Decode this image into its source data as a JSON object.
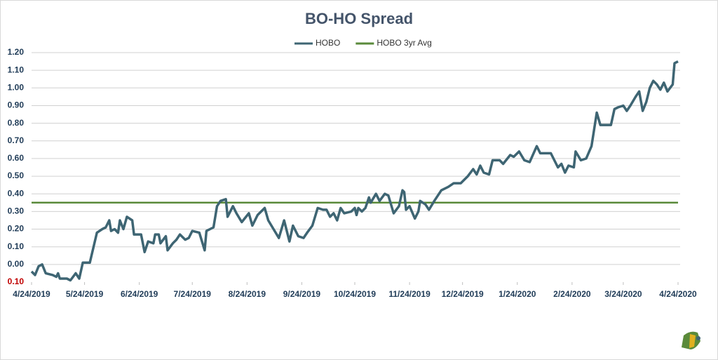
{
  "chart_data": {
    "type": "line",
    "title": "BO-HO Spread",
    "legend": "top",
    "grid": true,
    "negative_tick_color": "#c00000",
    "xlim": [
      "2019-04-24",
      "2020-04-24"
    ],
    "xticks": [
      {
        "value": "2019-04-24",
        "label": "4/24/2019"
      },
      {
        "value": "2019-05-24",
        "label": "5/24/2019"
      },
      {
        "value": "2019-06-24",
        "label": "6/24/2019"
      },
      {
        "value": "2019-07-24",
        "label": "7/24/2019"
      },
      {
        "value": "2019-08-24",
        "label": "8/24/2019"
      },
      {
        "value": "2019-09-24",
        "label": "9/24/2019"
      },
      {
        "value": "2019-10-24",
        "label": "10/24/2019"
      },
      {
        "value": "2019-11-24",
        "label": "11/24/2019"
      },
      {
        "value": "2019-12-24",
        "label": "12/24/2019"
      },
      {
        "value": "2020-01-24",
        "label": "1/24/2020"
      },
      {
        "value": "2020-02-24",
        "label": "2/24/2020"
      },
      {
        "value": "2020-03-24",
        "label": "3/24/2020"
      },
      {
        "value": "2020-04-24",
        "label": "4/24/2020"
      }
    ],
    "ylim": [
      -0.1,
      1.2
    ],
    "yticks": [
      {
        "value": -0.1,
        "label": "0.10"
      },
      {
        "value": 0,
        "label": "0.00"
      },
      {
        "value": 0.1,
        "label": "0.10"
      },
      {
        "value": 0.2,
        "label": "0.20"
      },
      {
        "value": 0.3,
        "label": "0.30"
      },
      {
        "value": 0.4,
        "label": "0.40"
      },
      {
        "value": 0.5,
        "label": "0.50"
      },
      {
        "value": 0.6,
        "label": "0.60"
      },
      {
        "value": 0.7,
        "label": "0.70"
      },
      {
        "value": 0.8,
        "label": "0.80"
      },
      {
        "value": 0.9,
        "label": "0.90"
      },
      {
        "value": 1.0,
        "label": "1.00"
      },
      {
        "value": 1.1,
        "label": "1.10"
      },
      {
        "value": 1.2,
        "label": "1.20"
      }
    ],
    "series": [
      {
        "name": "HOBO",
        "color": "#3e6573",
        "x": [
          "2019-04-24",
          "2019-04-26",
          "2019-04-28",
          "2019-04-30",
          "2019-05-02",
          "2019-05-06",
          "2019-05-08",
          "2019-05-09",
          "2019-05-10",
          "2019-05-14",
          "2019-05-16",
          "2019-05-19",
          "2019-05-21",
          "2019-05-23",
          "2019-05-27",
          "2019-05-31",
          "2019-06-03",
          "2019-06-05",
          "2019-06-07",
          "2019-06-08",
          "2019-06-10",
          "2019-06-12",
          "2019-06-13",
          "2019-06-15",
          "2019-06-17",
          "2019-06-20",
          "2019-06-21",
          "2019-06-25",
          "2019-06-27",
          "2019-06-29",
          "2019-07-02",
          "2019-07-03",
          "2019-07-05",
          "2019-07-06",
          "2019-07-09",
          "2019-07-10",
          "2019-07-13",
          "2019-07-15",
          "2019-07-17",
          "2019-07-20",
          "2019-07-22",
          "2019-07-24",
          "2019-07-28",
          "2019-07-31",
          "2019-08-01",
          "2019-08-05",
          "2019-08-07",
          "2019-08-09",
          "2019-08-12",
          "2019-08-13",
          "2019-08-16",
          "2019-08-18",
          "2019-08-21",
          "2019-08-25",
          "2019-08-27",
          "2019-08-30",
          "2019-09-03",
          "2019-09-05",
          "2019-09-08",
          "2019-09-11",
          "2019-09-14",
          "2019-09-17",
          "2019-09-19",
          "2019-09-22",
          "2019-09-25",
          "2019-09-27",
          "2019-09-30",
          "2019-10-03",
          "2019-10-06",
          "2019-10-08",
          "2019-10-10",
          "2019-10-12",
          "2019-10-14",
          "2019-10-16",
          "2019-10-18",
          "2019-10-22",
          "2019-10-24",
          "2019-10-25",
          "2019-10-26",
          "2019-10-28",
          "2019-10-30",
          "2019-11-01",
          "2019-11-02",
          "2019-11-05",
          "2019-11-07",
          "2019-11-10",
          "2019-11-12",
          "2019-11-15",
          "2019-11-18",
          "2019-11-20",
          "2019-11-21",
          "2019-11-22",
          "2019-11-24",
          "2019-11-27",
          "2019-11-29",
          "2019-11-30",
          "2019-12-03",
          "2019-12-05",
          "2019-12-08",
          "2019-12-12",
          "2019-12-16",
          "2019-12-19",
          "2019-12-23",
          "2019-12-27",
          "2019-12-30",
          "2020-01-01",
          "2020-01-03",
          "2020-01-05",
          "2020-01-08",
          "2020-01-10",
          "2020-01-14",
          "2020-01-16",
          "2020-01-20",
          "2020-01-22",
          "2020-01-25",
          "2020-01-28",
          "2020-01-31",
          "2020-02-04",
          "2020-02-06",
          "2020-02-12",
          "2020-02-16",
          "2020-02-18",
          "2020-02-20",
          "2020-02-22",
          "2020-02-25",
          "2020-02-26",
          "2020-02-29",
          "2020-03-03",
          "2020-03-06",
          "2020-03-09",
          "2020-03-11",
          "2020-03-14",
          "2020-03-17",
          "2020-03-19",
          "2020-03-21",
          "2020-03-24",
          "2020-03-26",
          "2020-03-28",
          "2020-03-31",
          "2020-04-02",
          "2020-04-04",
          "2020-04-06",
          "2020-04-08",
          "2020-04-10",
          "2020-04-12",
          "2020-04-14",
          "2020-04-16",
          "2020-04-18",
          "2020-04-21",
          "2020-04-22",
          "2020-04-24"
        ],
        "values": [
          -0.04,
          -0.06,
          -0.01,
          0.0,
          -0.05,
          -0.06,
          -0.07,
          -0.05,
          -0.08,
          -0.08,
          -0.09,
          -0.05,
          -0.08,
          0.01,
          0.01,
          0.18,
          0.2,
          0.21,
          0.25,
          0.19,
          0.2,
          0.18,
          0.25,
          0.2,
          0.27,
          0.25,
          0.17,
          0.17,
          0.07,
          0.13,
          0.12,
          0.17,
          0.17,
          0.12,
          0.16,
          0.08,
          0.12,
          0.14,
          0.17,
          0.14,
          0.15,
          0.19,
          0.18,
          0.08,
          0.19,
          0.21,
          0.33,
          0.36,
          0.37,
          0.27,
          0.33,
          0.29,
          0.24,
          0.29,
          0.22,
          0.28,
          0.32,
          0.25,
          0.2,
          0.15,
          0.25,
          0.13,
          0.22,
          0.16,
          0.15,
          0.18,
          0.22,
          0.32,
          0.31,
          0.31,
          0.27,
          0.29,
          0.25,
          0.32,
          0.29,
          0.3,
          0.32,
          0.28,
          0.32,
          0.3,
          0.32,
          0.38,
          0.35,
          0.4,
          0.36,
          0.4,
          0.39,
          0.29,
          0.33,
          0.42,
          0.41,
          0.31,
          0.33,
          0.26,
          0.3,
          0.36,
          0.34,
          0.31,
          0.36,
          0.42,
          0.44,
          0.46,
          0.46,
          0.5,
          0.54,
          0.51,
          0.56,
          0.52,
          0.51,
          0.59,
          0.59,
          0.57,
          0.62,
          0.61,
          0.64,
          0.59,
          0.58,
          0.67,
          0.63,
          0.63,
          0.55,
          0.57,
          0.52,
          0.56,
          0.55,
          0.64,
          0.59,
          0.6,
          0.67,
          0.86,
          0.79,
          0.79,
          0.79,
          0.88,
          0.89,
          0.9,
          0.87,
          0.9,
          0.95,
          0.98,
          0.87,
          0.92,
          1.0,
          1.04,
          1.02,
          0.99,
          1.03,
          0.98,
          1.02,
          1.14,
          1.15
        ]
      },
      {
        "name": "HOBO 3yr Avg",
        "color": "#5a8a3a",
        "x": [
          "2019-04-24",
          "2020-04-24"
        ],
        "values": [
          0.35,
          0.35
        ]
      }
    ]
  }
}
